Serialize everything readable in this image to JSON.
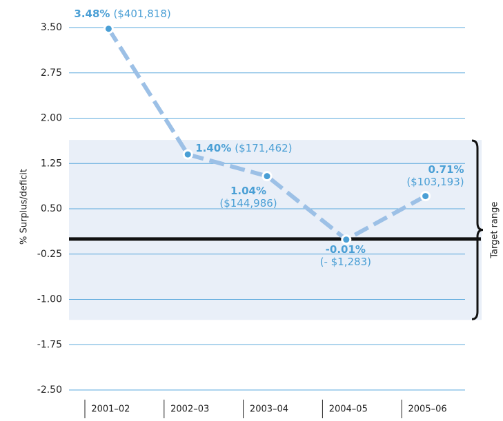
{
  "chart_data": {
    "type": "line",
    "y_axis_label": "% Surplus/deficit",
    "categories": [
      "2001–02",
      "2002–03",
      "2003–04",
      "2004–05",
      "2005–06"
    ],
    "series": [
      {
        "name": "Surplus/deficit",
        "color": "#9cc0e6",
        "values": [
          3.48,
          1.4,
          1.04,
          -0.01,
          0.71
        ],
        "value_labels": [
          "3.48%",
          "1.40%",
          "1.04%",
          "-0.01%",
          "0.71%"
        ],
        "amount_labels": [
          "($401,818)",
          "($171,462)",
          "($144,986)",
          "(- $1,283)",
          "($103,193)"
        ]
      }
    ],
    "ylim": [
      -2.5,
      3.5
    ],
    "yticks": [
      {
        "value": 3.5,
        "label": "3.50"
      },
      {
        "value": 2.75,
        "label": "2.75"
      },
      {
        "value": 2.0,
        "label": "2.00"
      },
      {
        "value": 1.25,
        "label": "1.25"
      },
      {
        "value": 0.5,
        "label": "0.50"
      },
      {
        "value": -0.25,
        "label": "-0.25"
      },
      {
        "value": -1.0,
        "label": "-1.00"
      },
      {
        "value": -1.75,
        "label": "-1.75"
      },
      {
        "value": -2.5,
        "label": "-2.50"
      }
    ],
    "grid": true,
    "reference_line": 0,
    "target_range": {
      "label": "Target range",
      "range": [
        -1.34,
        1.64
      ]
    }
  }
}
